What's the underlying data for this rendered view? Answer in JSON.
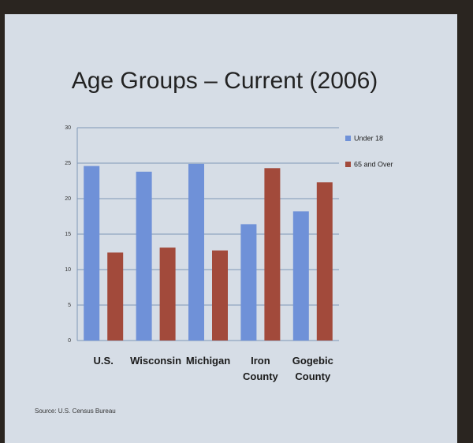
{
  "chart_data": {
    "type": "bar",
    "title": "Age Groups – Current (2006)",
    "categories": [
      "U.S.",
      "Wisconsin",
      "Michigan",
      "Iron County",
      "Gogebic County"
    ],
    "series": [
      {
        "name": "Under 18",
        "color": "#6f91d8",
        "values": [
          24.6,
          23.8,
          24.9,
          16.4,
          18.2
        ]
      },
      {
        "name": "65 and Over",
        "color": "#a24a3b",
        "values": [
          12.4,
          13.1,
          12.7,
          24.3,
          22.3
        ]
      }
    ],
    "ylim": [
      0,
      30
    ],
    "yticks": [
      0,
      5,
      10,
      15,
      20,
      25,
      30
    ],
    "grid": true,
    "legend": "right",
    "source": "Source: U.S. Census Bureau"
  }
}
